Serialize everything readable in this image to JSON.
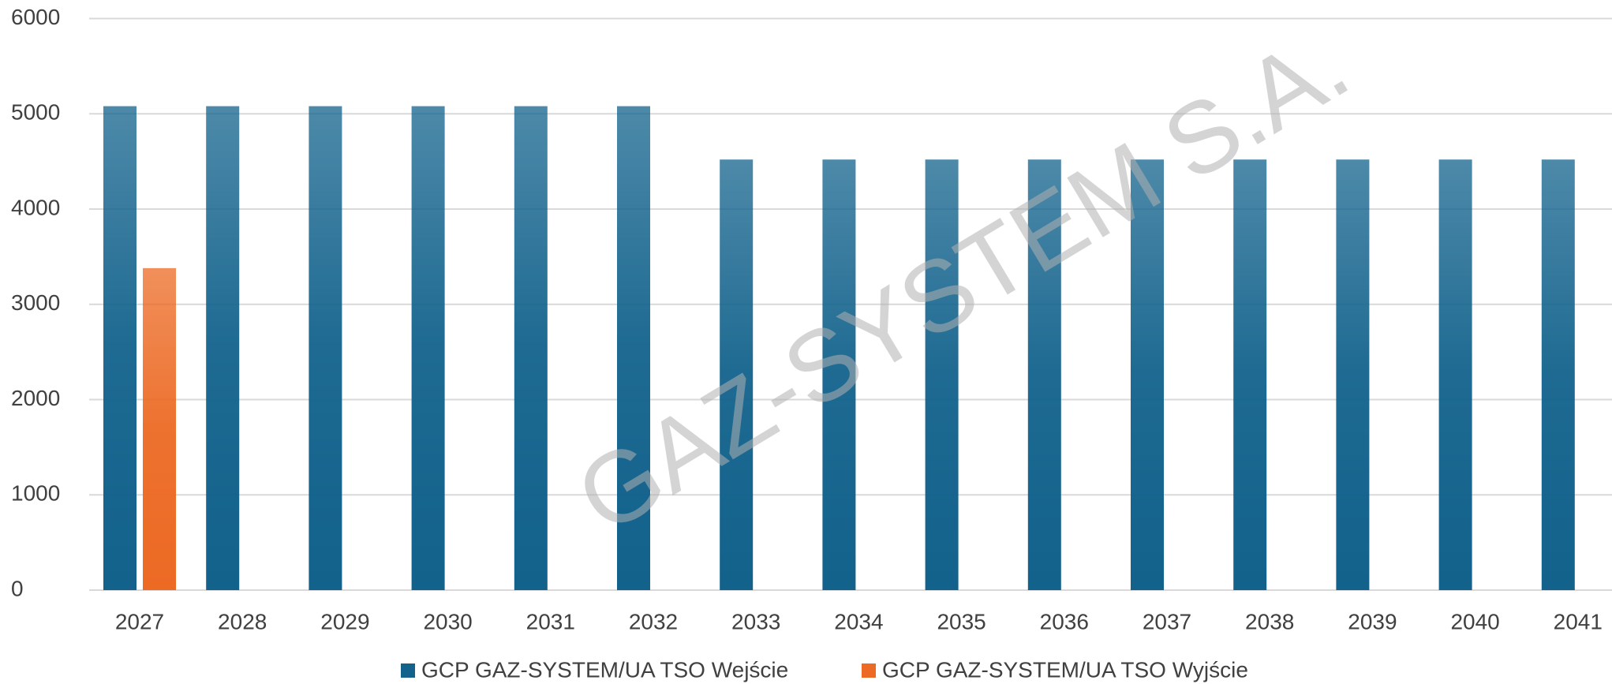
{
  "chart_data": {
    "type": "bar",
    "categories": [
      "2027",
      "2028",
      "2029",
      "2030",
      "2031",
      "2032",
      "2033",
      "2034",
      "2035",
      "2036",
      "2037",
      "2038",
      "2039",
      "2040",
      "2041"
    ],
    "series": [
      {
        "name": "GCP GAZ-SYSTEM/UA TSO Wejście",
        "color": "#12628c",
        "values": [
          5080,
          5080,
          5080,
          5080,
          5080,
          5080,
          4520,
          4520,
          4520,
          4520,
          4520,
          4520,
          4520,
          4520,
          4520
        ]
      },
      {
        "name": "GCP GAZ-SYSTEM/UA TSO Wyjście",
        "color": "#ec6a24",
        "values": [
          3380,
          null,
          null,
          null,
          null,
          null,
          null,
          null,
          null,
          null,
          null,
          null,
          null,
          null,
          null
        ]
      }
    ],
    "ylim": [
      0,
      6000
    ],
    "yticks": [
      0,
      1000,
      2000,
      3000,
      4000,
      5000,
      6000
    ],
    "grid": true,
    "legend": "bottom",
    "annotations": [
      "GAZ-SYSTEM S.A."
    ]
  }
}
